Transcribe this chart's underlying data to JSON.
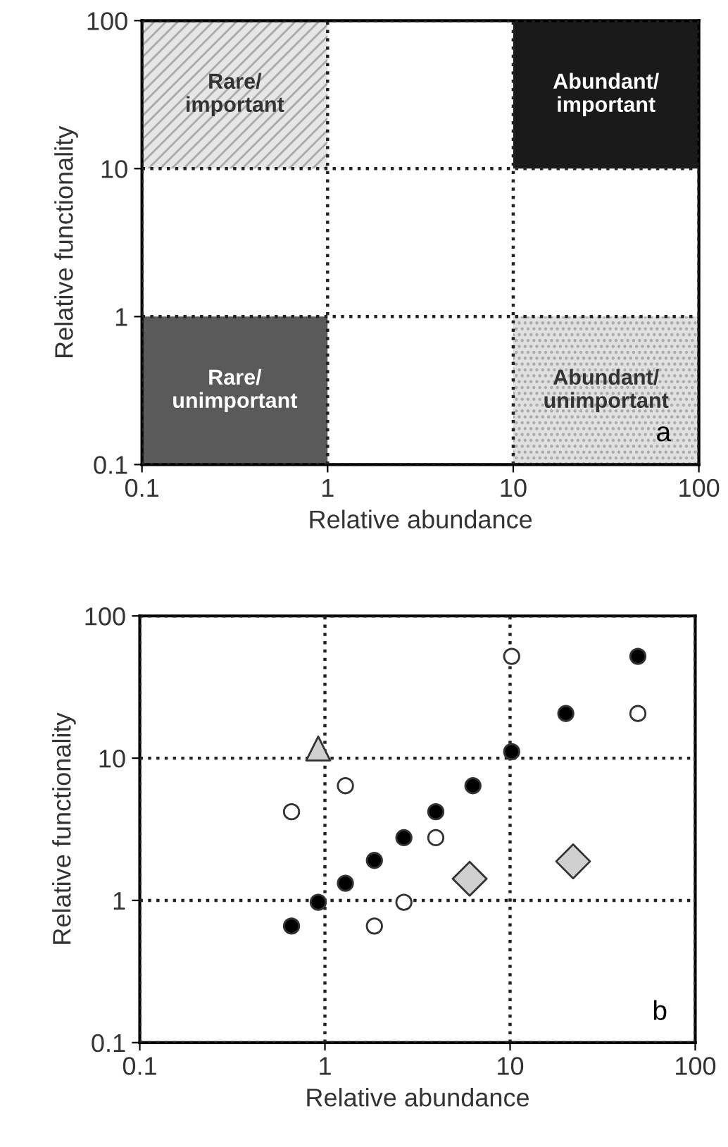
{
  "chart_data": [
    {
      "type": "bar",
      "xlabel": "Relative abundance",
      "ylabel": "Relative functionality",
      "log": "xy",
      "grid": true,
      "xlim": [
        0.1,
        100
      ],
      "ylim": [
        0.1,
        100
      ],
      "xticks": [
        0.1,
        1,
        10,
        100
      ],
      "yticks": [
        0.1,
        1,
        10,
        100
      ],
      "series": [
        {
          "x": [
            0.316,
            31.6
          ],
          "base": [
            10,
            10
          ],
          "values": [
            90,
            90
          ],
          "colors": [
            "#e6e6e6",
            "#1a1a1a"
          ],
          "value_labels": [
            "Rare/\nimportant",
            "Abundant/\nimportant"
          ]
        },
        {
          "x": [
            0.316,
            31.6
          ],
          "base": [
            0.1,
            0.1
          ],
          "values": [
            0.9,
            0.9
          ],
          "colors": [
            "#5a5a5a",
            "#e0e0e0"
          ],
          "value_labels": [
            "Rare/\nunimportant",
            "Abundant/\nunimportant"
          ]
        }
      ],
      "annotations": [
        "a"
      ]
    },
    {
      "type": "scatter",
      "xlabel": "Relative abundance",
      "ylabel": "Relative functionality",
      "log": "xy",
      "grid": true,
      "xlim": [
        0.1,
        100
      ],
      "ylim": [
        0.1,
        100
      ],
      "xticks": [
        0.1,
        1,
        10,
        100
      ],
      "yticks": [
        0.1,
        1,
        10,
        100
      ],
      "series": [
        {
          "color": "#000000",
          "marker": "circle",
          "x": [
            0.66,
            0.92,
            1.29,
            1.85,
            2.67,
            3.97,
            6.3,
            10.2,
            20,
            49
          ],
          "values": [
            0.66,
            0.97,
            1.32,
            1.91,
            2.76,
            4.2,
            6.4,
            11.1,
            20.6,
            52
          ]
        },
        {
          "color": "#ffffff",
          "marker": "circle",
          "x": [
            0.66,
            1.29,
            1.85,
            2.67,
            3.97,
            10.2,
            49
          ],
          "values": [
            4.2,
            6.4,
            0.66,
            0.97,
            2.76,
            52,
            20.6
          ]
        },
        {
          "color": "#d0d0d0",
          "marker": "triangle",
          "x": [
            0.92
          ],
          "values": [
            11.7
          ]
        },
        {
          "color": "#d0d0d0",
          "marker": "diamond",
          "x": [
            6.05,
            21.9
          ],
          "values": [
            1.42,
            1.88
          ]
        }
      ],
      "annotations": [
        "b"
      ]
    }
  ]
}
